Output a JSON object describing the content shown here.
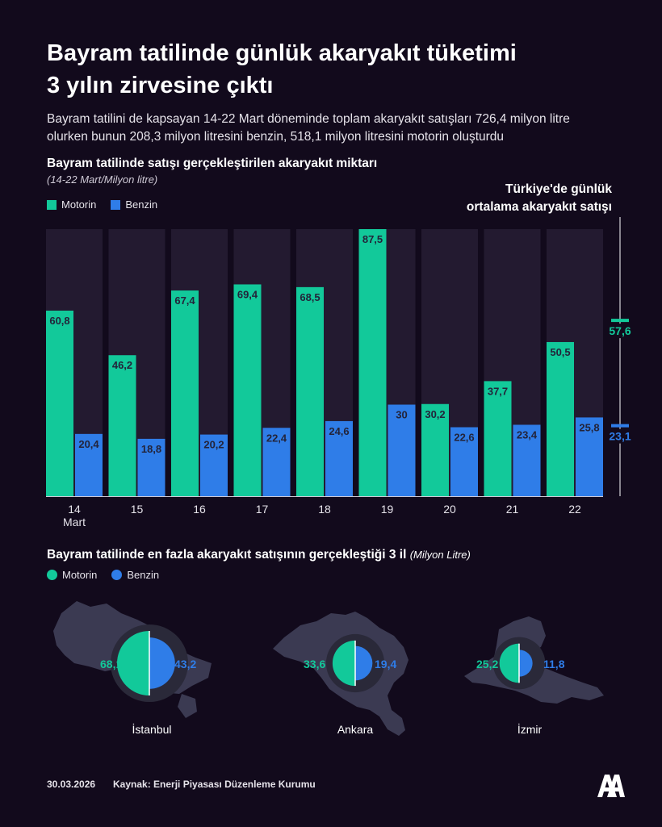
{
  "header": {
    "title_line1": "Bayram tatilinde günlük akaryakıt tüketimi",
    "title_line2": "3 yılın zirvesine çıktı",
    "subtitle_line1": "Bayram tatilini de kapsayan 14-22 Mart döneminde toplam akaryakıt satışları 726,4 milyon litre",
    "subtitle_line2": "olurken bunun 208,3 milyon litresini benzin, 518,1 milyon litresini motorin oluşturdu"
  },
  "colors": {
    "motorin": "#12c99a",
    "benzin": "#2f7de8",
    "background": "#120a1c",
    "panel": "#231a30"
  },
  "chart_data": [
    {
      "type": "bar",
      "title": "Bayram tatilinde satışı gerçekleştirilen akaryakıt miktarı",
      "subtitle": "(14-22 Mart/Milyon litre)",
      "categories": [
        "14",
        "15",
        "16",
        "17",
        "18",
        "19",
        "20",
        "21",
        "22"
      ],
      "first_category_sublabel": "Mart",
      "series": [
        {
          "name": "Motorin",
          "values": [
            60.8,
            46.2,
            67.4,
            69.4,
            68.5,
            87.5,
            30.2,
            37.7,
            50.5
          ],
          "labels": [
            "60,8",
            "46,2",
            "67,4",
            "69,4",
            "68,5",
            "87,5",
            "30,2",
            "37,7",
            "50,5"
          ]
        },
        {
          "name": "Benzin",
          "values": [
            20.4,
            18.8,
            20.2,
            22.4,
            24.6,
            30,
            22.6,
            23.4,
            25.8
          ],
          "labels": [
            "20,4",
            "18,8",
            "20,2",
            "22,4",
            "24,6",
            "30",
            "22,6",
            "23,4",
            "25,8"
          ]
        }
      ],
      "ylim": [
        0,
        87.5
      ],
      "grid": false,
      "legend": "top-left",
      "reference": {
        "title_line1": "Türkiye'de günlük",
        "title_line2": "ortalama akaryakıt satışı",
        "motorin": 57.6,
        "motorin_label": "57,6",
        "benzin": 23.1,
        "benzin_label": "23,1"
      }
    },
    {
      "type": "pie",
      "title": "Bayram tatilinde en fazla akaryakıt satışının gerçekleştiği 3 il",
      "unit": "(Milyon Litre)",
      "legend": "top-left",
      "cities": [
        {
          "name": "İstanbul",
          "motorin": 68.1,
          "motorin_label": "68,1",
          "benzin": 43.2,
          "benzin_label": "43,2"
        },
        {
          "name": "Ankara",
          "motorin": 33.6,
          "motorin_label": "33,6",
          "benzin": 19.4,
          "benzin_label": "19,4"
        },
        {
          "name": "İzmir",
          "motorin": 25.2,
          "motorin_label": "25,2",
          "benzin": 11.8,
          "benzin_label": "11,8"
        }
      ]
    }
  ],
  "legend": {
    "motorin": "Motorin",
    "benzin": "Benzin"
  },
  "footer": {
    "date": "30.03.2026",
    "source": "Kaynak: Enerji Piyasası Düzenleme Kurumu"
  }
}
